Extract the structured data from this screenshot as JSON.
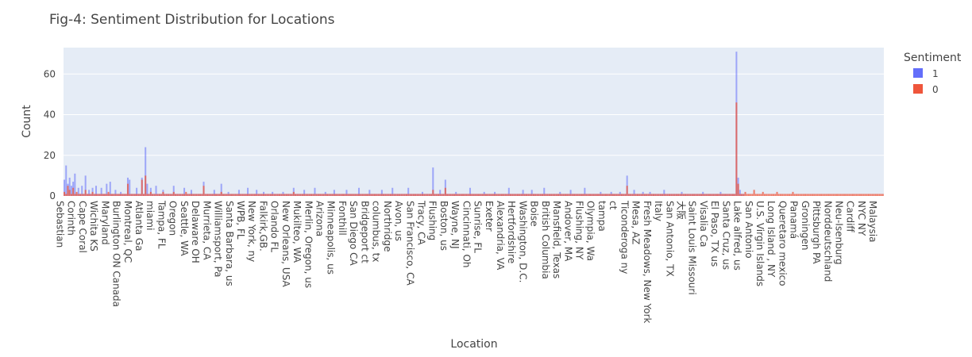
{
  "colors": {
    "plot_bg": "#e5ecf6",
    "grid": "#ffffff",
    "series_1": "#636efa",
    "series_0": "#ef553b"
  },
  "chart_data": {
    "type": "bar",
    "barmode": "overlay",
    "title": "Fig-4: Sentiment Distribution for Locations",
    "xlabel": "Location",
    "ylabel": "Count",
    "ylim": [
      0,
      73
    ],
    "yticks": [
      0,
      20,
      40,
      60
    ],
    "grid": true,
    "legend": {
      "title": "Sentiment",
      "placement": "top-right"
    },
    "category_count": 465,
    "tick_labels": [
      "Sebastian",
      "Corinth",
      "Cape Coral",
      "Wichita KS",
      "Maryland",
      "Burlington ON Canada",
      "Montreal, QC",
      "Atlanta Ga",
      "miami",
      "Tampa, FL",
      "Oregon",
      "Seattle, WA",
      "Delaware OH",
      "Murrieta, CA",
      "Williamsport, Pa",
      "Santa Barbara, us",
      "WPB, FL",
      "New York, ny",
      "Falkirk,GB.",
      "Orlando FL",
      "New Orleans, USA",
      "Mukilteo, WA",
      "Merlin, Oregon, us",
      "Arizona",
      "Minneapolis, us",
      "Fonthill",
      "San Diego CA",
      "Bridgeport ct",
      "columbus, tx",
      "Northridge",
      "Avon, us",
      "San Francisco, CA",
      "Tracy, CA",
      "Flushing",
      "Boston, us",
      "Wayne, NJ",
      "Cincinnati, Oh",
      "Sunrise, FL",
      "Exeter",
      "Alexandria, VA",
      "Hertfordshire",
      "Washington, D.C.",
      "Boise",
      "British Columbia",
      "Mansfield, Texas",
      "Andover, MA",
      "Flushing, NY",
      "Olympia, Wa",
      "tampa",
      "ct",
      "Ticonderoga ny",
      "Mesa, AZ",
      "Fresh Meadows, New York",
      "Italy",
      "San Antonio, TX",
      "大阪",
      "Saint Louis Missouri",
      "Visalia Ca",
      "El Paso, TX us",
      "Santa Cruz, us",
      "Lake alfred, us",
      "San Antonio",
      "U.S. Virgin Islands",
      "Long Island , NY",
      "Queretaro mexico",
      "Panamá",
      "Groningen",
      "Pittsburgh PA",
      "Norddeutschland",
      "Neu-Isenburg",
      "Cardiff",
      "NYC NY",
      "Malaysia"
    ],
    "tick_step": 6.4,
    "series": [
      {
        "name": "1",
        "color": "#636efa",
        "default_value": 1,
        "zero_from_index": 386,
        "values_at": [
          [
            0,
            8
          ],
          [
            1,
            15
          ],
          [
            2,
            6
          ],
          [
            3,
            9
          ],
          [
            4,
            5
          ],
          [
            5,
            7
          ],
          [
            6,
            11
          ],
          [
            8,
            4
          ],
          [
            10,
            5
          ],
          [
            12,
            10
          ],
          [
            14,
            3
          ],
          [
            16,
            4
          ],
          [
            18,
            5
          ],
          [
            21,
            4
          ],
          [
            24,
            6
          ],
          [
            26,
            7
          ],
          [
            29,
            3
          ],
          [
            32,
            2
          ],
          [
            36,
            9
          ],
          [
            37,
            8
          ],
          [
            41,
            4
          ],
          [
            44,
            9
          ],
          [
            46,
            24
          ],
          [
            47,
            6
          ],
          [
            49,
            4
          ],
          [
            52,
            5
          ],
          [
            56,
            3
          ],
          [
            62,
            5
          ],
          [
            68,
            4
          ],
          [
            72,
            3
          ],
          [
            79,
            7
          ],
          [
            85,
            3
          ],
          [
            89,
            6
          ],
          [
            93,
            2
          ],
          [
            99,
            3
          ],
          [
            104,
            4
          ],
          [
            109,
            3
          ],
          [
            113,
            2
          ],
          [
            118,
            2
          ],
          [
            124,
            2
          ],
          [
            130,
            4
          ],
          [
            136,
            3
          ],
          [
            142,
            4
          ],
          [
            148,
            2
          ],
          [
            153,
            3
          ],
          [
            160,
            3
          ],
          [
            167,
            4
          ],
          [
            173,
            3
          ],
          [
            180,
            3
          ],
          [
            186,
            4
          ],
          [
            195,
            4
          ],
          [
            203,
            2
          ],
          [
            209,
            14
          ],
          [
            213,
            3
          ],
          [
            216,
            8
          ],
          [
            222,
            2
          ],
          [
            230,
            4
          ],
          [
            238,
            2
          ],
          [
            244,
            2
          ],
          [
            252,
            4
          ],
          [
            260,
            3
          ],
          [
            265,
            3
          ],
          [
            272,
            4
          ],
          [
            281,
            2
          ],
          [
            287,
            3
          ],
          [
            295,
            4
          ],
          [
            304,
            2
          ],
          [
            310,
            2
          ],
          [
            315,
            2
          ],
          [
            319,
            10
          ],
          [
            323,
            3
          ],
          [
            328,
            2
          ],
          [
            332,
            2
          ],
          [
            340,
            3
          ],
          [
            350,
            2
          ],
          [
            362,
            2
          ],
          [
            372,
            2
          ],
          [
            381,
            71
          ],
          [
            382,
            9
          ],
          [
            383,
            3
          ]
        ]
      },
      {
        "name": "0",
        "color": "#ef553b",
        "default_value": 1,
        "zero_from_index": -1,
        "values_at": [
          [
            0,
            2
          ],
          [
            2,
            5
          ],
          [
            3,
            3
          ],
          [
            5,
            4
          ],
          [
            7,
            2
          ],
          [
            12,
            3
          ],
          [
            16,
            2
          ],
          [
            25,
            2
          ],
          [
            36,
            6
          ],
          [
            44,
            8
          ],
          [
            46,
            10
          ],
          [
            49,
            2
          ],
          [
            56,
            2
          ],
          [
            62,
            2
          ],
          [
            69,
            2
          ],
          [
            79,
            5
          ],
          [
            89,
            2
          ],
          [
            130,
            2
          ],
          [
            209,
            3
          ],
          [
            216,
            4
          ],
          [
            319,
            5
          ],
          [
            381,
            46
          ],
          [
            382,
            6
          ],
          [
            386,
            2
          ],
          [
            391,
            3
          ],
          [
            396,
            2
          ],
          [
            404,
            2
          ],
          [
            413,
            2
          ]
        ]
      }
    ]
  }
}
